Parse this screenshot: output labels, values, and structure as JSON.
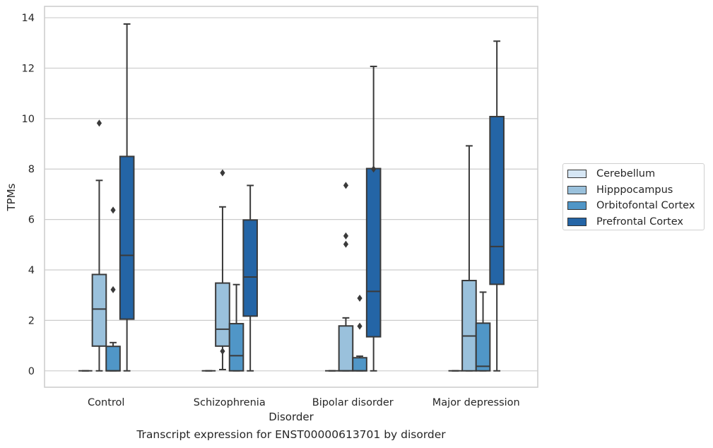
{
  "chart_data": {
    "type": "box",
    "xlabel": "Disorder",
    "ylabel": "TPMs",
    "caption": "Transcript expression for ENST00000613701 by disorder",
    "categories": [
      "Control",
      "Schizophrenia",
      "Bipolar disorder",
      "Major depression"
    ],
    "ylim": [
      -0.65,
      14.45
    ],
    "yticks": [
      0,
      2,
      4,
      6,
      8,
      10,
      12,
      14
    ],
    "grid": true,
    "legend_position": "right",
    "series": [
      {
        "name": "Cerebellum",
        "color": "#d6e6f4",
        "boxes": [
          {
            "min": 0,
            "q1": 0,
            "median": 0,
            "q3": 0,
            "max": 0,
            "outliers": []
          },
          {
            "min": 0,
            "q1": 0,
            "median": 0,
            "q3": 0,
            "max": 0,
            "outliers": []
          },
          {
            "min": 0,
            "q1": 0,
            "median": 0,
            "q3": 0,
            "max": 0,
            "outliers": []
          },
          {
            "min": 0,
            "q1": 0,
            "median": 0,
            "q3": 0,
            "max": 0,
            "outliers": []
          }
        ]
      },
      {
        "name": "Hipppocampus",
        "color": "#9ac1dc",
        "boxes": [
          {
            "min": 0,
            "q1": 0.98,
            "median": 2.45,
            "q3": 3.82,
            "max": 7.55,
            "outliers": [
              9.82
            ]
          },
          {
            "min": 0.05,
            "q1": 0.98,
            "median": 1.65,
            "q3": 3.48,
            "max": 6.5,
            "outliers": [
              0.78,
              7.85
            ]
          },
          {
            "min": 0,
            "q1": 0,
            "median": 0,
            "q3": 1.78,
            "max": 2.1,
            "outliers": [
              7.35,
              5.35,
              5.02
            ]
          },
          {
            "min": 0,
            "q1": 0,
            "median": 1.38,
            "q3": 3.58,
            "max": 8.92,
            "outliers": []
          }
        ]
      },
      {
        "name": "Orbitofontal Cortex",
        "color": "#5096c7",
        "boxes": [
          {
            "min": 0,
            "q1": 0,
            "median": 0,
            "q3": 0.97,
            "max": 1.12,
            "outliers": [
              6.37,
              3.22
            ]
          },
          {
            "min": 0,
            "q1": 0,
            "median": 0.6,
            "q3": 1.87,
            "max": 3.42,
            "outliers": []
          },
          {
            "min": 0,
            "q1": 0,
            "median": 0,
            "q3": 0.52,
            "max": 0.58,
            "outliers": [
              2.88,
              1.77
            ]
          },
          {
            "min": 0,
            "q1": 0,
            "median": 0.18,
            "q3": 1.89,
            "max": 3.12,
            "outliers": []
          }
        ]
      },
      {
        "name": "Prefrontal Cortex",
        "color": "#2465a6",
        "boxes": [
          {
            "min": 0,
            "q1": 2.05,
            "median": 4.58,
            "q3": 8.5,
            "max": 13.75,
            "outliers": []
          },
          {
            "min": 0,
            "q1": 2.17,
            "median": 3.72,
            "q3": 5.98,
            "max": 7.35,
            "outliers": []
          },
          {
            "min": 0,
            "q1": 1.35,
            "median": 3.15,
            "q3": 8.02,
            "max": 12.07,
            "outliers": [
              8.0
            ]
          },
          {
            "min": 0,
            "q1": 3.43,
            "median": 4.93,
            "q3": 10.08,
            "max": 13.07,
            "outliers": []
          }
        ]
      }
    ]
  }
}
